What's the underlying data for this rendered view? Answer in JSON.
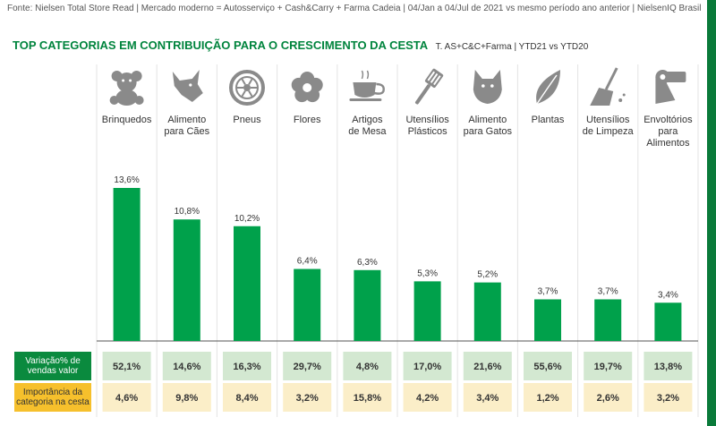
{
  "source": "Fonte: Nielsen Total Store Read  | Mercado moderno = Autosserviço + Cash&Carry + Farma Cadeia | 04/Jan a 04/Jul de 2021 vs mesmo período ano anterior | NielsenIQ Brasil",
  "colors": {
    "bar": "#00a14b",
    "title": "#00843d",
    "row_green": "#0a8a3e",
    "row_yellow": "#f6c02c",
    "cell_green": "#d3e8d1",
    "cell_yellow": "#fbeec8"
  },
  "chart_data": {
    "type": "bar",
    "title": "TOP CATEGORIAS EM CONTRIBUIÇÃO PARA O CRESCIMENTO DA CESTA",
    "subtitle": "T. AS+C&C+Farma | YTD21 vs YTD20",
    "categories": [
      {
        "lines": [
          "Brinquedos"
        ],
        "icon": "teddy-bear-icon"
      },
      {
        "lines": [
          "Alimento",
          "para Cães"
        ],
        "icon": "dog-icon"
      },
      {
        "lines": [
          "Pneus"
        ],
        "icon": "tire-icon"
      },
      {
        "lines": [
          "Flores"
        ],
        "icon": "flower-icon"
      },
      {
        "lines": [
          "Artigos",
          "de Mesa"
        ],
        "icon": "teacup-icon"
      },
      {
        "lines": [
          "Utensílios",
          "Plásticos"
        ],
        "icon": "spatula-icon"
      },
      {
        "lines": [
          "Alimento",
          "para Gatos"
        ],
        "icon": "cat-icon"
      },
      {
        "lines": [
          "Plantas"
        ],
        "icon": "leaf-icon"
      },
      {
        "lines": [
          "Utensílios",
          "de Limpeza"
        ],
        "icon": "broom-icon"
      },
      {
        "lines": [
          "Envoltórios",
          "para",
          "Alimentos"
        ],
        "icon": "paper-roll-icon"
      }
    ],
    "values": [
      13.6,
      10.8,
      10.2,
      6.4,
      6.3,
      5.3,
      5.2,
      3.7,
      3.7,
      3.4
    ],
    "value_labels": [
      "13,6%",
      "10,8%",
      "10,2%",
      "6,4%",
      "6,3%",
      "5,3%",
      "5,2%",
      "3,7%",
      "3,7%",
      "3,4%"
    ],
    "ylim": [
      0,
      13.6
    ],
    "grid": false,
    "rows": [
      {
        "label_lines": [
          "Variação% de",
          "vendas valor"
        ],
        "values": [
          "52,1%",
          "14,6%",
          "16,3%",
          "29,7%",
          "4,8%",
          "17,0%",
          "21,6%",
          "55,6%",
          "19,7%",
          "13,8%"
        ]
      },
      {
        "label_lines": [
          "Importância da",
          "categoria na cesta"
        ],
        "values": [
          "4,6%",
          "9,8%",
          "8,4%",
          "3,2%",
          "15,8%",
          "4,2%",
          "3,4%",
          "1,2%",
          "2,6%",
          "3,2%"
        ]
      }
    ]
  }
}
